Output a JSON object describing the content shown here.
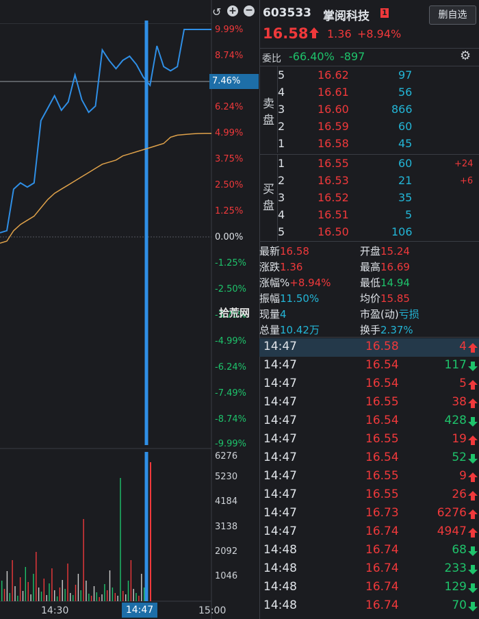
{
  "toolbar": {
    "back_icon": "undo-icon",
    "zoom_in_icon": "plus-icon",
    "zoom_out_icon": "minus-icon"
  },
  "stock": {
    "code": "603533",
    "name": "掌阅科技",
    "badge": "1",
    "price": "16.58",
    "change": "1.36",
    "change_pct": "+8.94%",
    "watch_button": "删自选"
  },
  "weibi": {
    "label": "委比",
    "ratio": "-66.40%",
    "diff": "-897"
  },
  "chart": {
    "pct_labels": [
      "9.99%",
      "8.74%",
      "7.46%",
      "6.24%",
      "4.99%",
      "3.75%",
      "2.50%",
      "1.25%",
      "0.00%",
      "-1.25%",
      "-2.50%",
      "-3.75%",
      "-4.99%",
      "-6.24%",
      "-7.49%",
      "-8.74%",
      "-9.99%"
    ],
    "vol_labels": [
      "6276",
      "5230",
      "4184",
      "3138",
      "2092",
      "1046"
    ],
    "time_labels": [
      "14:30",
      "14:47",
      "15:00"
    ],
    "watermark": "拾荒网"
  },
  "chart_data": {
    "type": "line",
    "ylim_pct": [
      -9.99,
      9.99
    ],
    "series": [
      {
        "values": [
          0.2,
          0.3,
          2.3,
          2.6,
          2.4,
          2.6,
          5.6,
          6.2,
          6.8,
          6.1,
          6.5,
          7.8,
          6.6,
          6.0,
          6.3,
          9.0,
          8.5,
          8.1,
          8.5,
          8.7,
          8.3,
          7.7,
          7.3,
          9.2,
          8.2,
          8.0,
          8.2,
          9.99,
          9.99,
          9.99,
          9.99,
          9.99
        ]
      },
      {
        "values": [
          -0.3,
          -0.2,
          0.3,
          0.6,
          0.8,
          1.0,
          1.4,
          1.8,
          2.1,
          2.3,
          2.5,
          2.7,
          2.9,
          3.1,
          3.3,
          3.5,
          3.6,
          3.7,
          3.9,
          4.0,
          4.1,
          4.2,
          4.3,
          4.4,
          4.5,
          4.8,
          4.9,
          4.93,
          4.96,
          4.98,
          4.99,
          4.99
        ]
      }
    ]
  },
  "orderbook": {
    "sell_label": [
      "卖",
      "盘"
    ],
    "buy_label": [
      "买",
      "盘"
    ],
    "sell": [
      {
        "level": "5",
        "price": "16.62",
        "vol": "97",
        "delta": ""
      },
      {
        "level": "4",
        "price": "16.61",
        "vol": "56",
        "delta": ""
      },
      {
        "level": "3",
        "price": "16.60",
        "vol": "866",
        "delta": ""
      },
      {
        "level": "2",
        "price": "16.59",
        "vol": "60",
        "delta": ""
      },
      {
        "level": "1",
        "price": "16.58",
        "vol": "45",
        "delta": ""
      }
    ],
    "buy": [
      {
        "level": "1",
        "price": "16.55",
        "vol": "60",
        "delta": "+24"
      },
      {
        "level": "2",
        "price": "16.53",
        "vol": "21",
        "delta": "+6"
      },
      {
        "level": "3",
        "price": "16.52",
        "vol": "35",
        "delta": ""
      },
      {
        "level": "4",
        "price": "16.51",
        "vol": "5",
        "delta": ""
      },
      {
        "level": "5",
        "price": "16.50",
        "vol": "106",
        "delta": ""
      }
    ]
  },
  "stats": {
    "latest_label": "最新",
    "latest": "16.58",
    "open_label": "开盘",
    "open": "15.24",
    "chg_label": "涨跌",
    "chg": "1.36",
    "high_label": "最高",
    "high": "16.69",
    "chgpct_label": "涨幅%",
    "chgpct": "+8.94%",
    "low_label": "最低",
    "low": "14.94",
    "amp_label": "振幅",
    "amp": "11.50%",
    "avg_label": "均价",
    "avg": "15.85",
    "curvol_label": "现量",
    "curvol": "4",
    "pe_label": "市盈(动)",
    "pe": "亏损",
    "totvol_label": "总量",
    "totvol": "10.42万",
    "turnover_label": "换手",
    "turnover": "2.37%"
  },
  "trades": [
    {
      "time": "14:47",
      "price": "16.58",
      "vol": "4",
      "dir": "up"
    },
    {
      "time": "14:47",
      "price": "16.54",
      "vol": "117",
      "dir": "down"
    },
    {
      "time": "14:47",
      "price": "16.54",
      "vol": "5",
      "dir": "up"
    },
    {
      "time": "14:47",
      "price": "16.55",
      "vol": "38",
      "dir": "up"
    },
    {
      "time": "14:47",
      "price": "16.54",
      "vol": "428",
      "dir": "down"
    },
    {
      "time": "14:47",
      "price": "16.55",
      "vol": "19",
      "dir": "up"
    },
    {
      "time": "14:47",
      "price": "16.54",
      "vol": "52",
      "dir": "down"
    },
    {
      "time": "14:47",
      "price": "16.55",
      "vol": "9",
      "dir": "up"
    },
    {
      "time": "14:47",
      "price": "16.55",
      "vol": "26",
      "dir": "up"
    },
    {
      "time": "14:47",
      "price": "16.73",
      "vol": "6276",
      "dir": "up"
    },
    {
      "time": "14:47",
      "price": "16.74",
      "vol": "4947",
      "dir": "up"
    },
    {
      "time": "14:48",
      "price": "16.74",
      "vol": "68",
      "dir": "down"
    },
    {
      "time": "14:48",
      "price": "16.74",
      "vol": "233",
      "dir": "down"
    },
    {
      "time": "14:48",
      "price": "16.74",
      "vol": "129",
      "dir": "down"
    },
    {
      "time": "14:48",
      "price": "16.74",
      "vol": "70",
      "dir": "down"
    }
  ],
  "colors": {
    "up": "#f0393b",
    "down": "#1ec36b",
    "line": "#2f8fe6",
    "avg": "#e0a24a",
    "bg": "#1b1c20"
  }
}
